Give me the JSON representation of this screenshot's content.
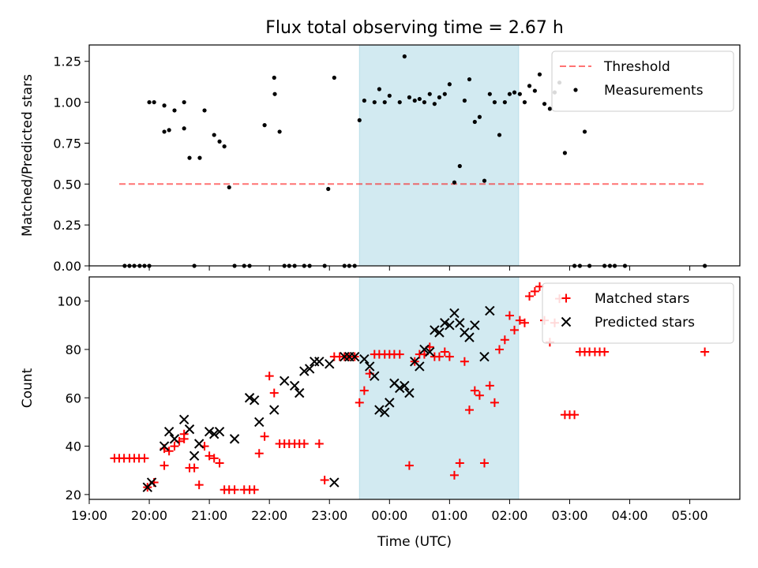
{
  "title": "Flux total observing time = 2.67 h",
  "chart_data": [
    {
      "type": "scatter",
      "panel": "top",
      "title": "Flux total observing time = 2.67 h",
      "xlabel": "",
      "ylabel": "Matched/Predicted stars",
      "x_unit": "hours since 19:00 UTC (tick labels show HH:MM)",
      "ylim": [
        0,
        1.35
      ],
      "yticks": [
        "0.00",
        "0.25",
        "0.50",
        "0.75",
        "1.00",
        "1.25"
      ],
      "grid": false,
      "legend_position": "top-right",
      "highlight_span": {
        "from": "23:30",
        "to": "02:09",
        "color": "#add8e6"
      },
      "threshold": {
        "name": "Threshold",
        "value": 0.5,
        "x_from": "19:30",
        "x_to": "05:15",
        "color": "#ff0000",
        "style": "dashed"
      },
      "series": [
        {
          "name": "Measurements",
          "color": "#000000",
          "marker": "dot",
          "points": [
            [
              0.59,
              0.0
            ],
            [
              0.67,
              0.0
            ],
            [
              0.75,
              0.0
            ],
            [
              0.84,
              0.0
            ],
            [
              0.92,
              0.0
            ],
            [
              1.0,
              0.0
            ],
            [
              1.0,
              1.0
            ],
            [
              1.08,
              1.0
            ],
            [
              1.25,
              0.82
            ],
            [
              1.25,
              0.98
            ],
            [
              1.33,
              0.83
            ],
            [
              1.42,
              0.95
            ],
            [
              1.58,
              1.0
            ],
            [
              1.58,
              0.84
            ],
            [
              1.67,
              0.66
            ],
            [
              1.75,
              0.0
            ],
            [
              1.84,
              0.66
            ],
            [
              1.92,
              0.95
            ],
            [
              2.08,
              0.8
            ],
            [
              2.17,
              0.76
            ],
            [
              2.25,
              0.73
            ],
            [
              2.33,
              0.48
            ],
            [
              2.42,
              0.0
            ],
            [
              2.58,
              0.0
            ],
            [
              2.67,
              0.0
            ],
            [
              2.92,
              0.86
            ],
            [
              3.08,
              1.15
            ],
            [
              3.09,
              1.05
            ],
            [
              3.17,
              0.82
            ],
            [
              3.25,
              0.0
            ],
            [
              3.33,
              0.0
            ],
            [
              3.42,
              0.0
            ],
            [
              3.58,
              0.0
            ],
            [
              3.67,
              0.0
            ],
            [
              3.92,
              0.0
            ],
            [
              3.98,
              0.47
            ],
            [
              4.08,
              1.15
            ],
            [
              4.25,
              0.0
            ],
            [
              4.33,
              0.0
            ],
            [
              4.42,
              0.0
            ],
            [
              4.5,
              0.89
            ],
            [
              4.58,
              1.01
            ],
            [
              4.75,
              1.0
            ],
            [
              4.83,
              1.08
            ],
            [
              4.92,
              1.0
            ],
            [
              5.0,
              1.04
            ],
            [
              5.17,
              1.0
            ],
            [
              5.25,
              1.28
            ],
            [
              5.33,
              1.03
            ],
            [
              5.42,
              1.01
            ],
            [
              5.5,
              1.02
            ],
            [
              5.58,
              1.0
            ],
            [
              5.67,
              1.05
            ],
            [
              5.75,
              0.99
            ],
            [
              5.83,
              1.03
            ],
            [
              5.92,
              1.05
            ],
            [
              6.0,
              1.11
            ],
            [
              6.08,
              0.51
            ],
            [
              6.17,
              0.61
            ],
            [
              6.25,
              1.01
            ],
            [
              6.33,
              1.14
            ],
            [
              6.42,
              0.88
            ],
            [
              6.5,
              0.91
            ],
            [
              6.58,
              0.52
            ],
            [
              6.67,
              1.05
            ],
            [
              6.75,
              1.0
            ],
            [
              6.83,
              0.8
            ],
            [
              6.92,
              1.0
            ],
            [
              7.0,
              1.05
            ],
            [
              7.08,
              1.06
            ],
            [
              7.17,
              1.05
            ],
            [
              7.25,
              1.0
            ],
            [
              7.33,
              1.1
            ],
            [
              7.42,
              1.07
            ],
            [
              7.5,
              1.17
            ],
            [
              7.58,
              0.99
            ],
            [
              7.67,
              0.96
            ],
            [
              7.75,
              1.06
            ],
            [
              7.83,
              1.12
            ],
            [
              7.92,
              0.69
            ],
            [
              8.08,
              0.0
            ],
            [
              8.17,
              0.0
            ],
            [
              8.25,
              0.82
            ],
            [
              8.33,
              0.0
            ],
            [
              8.58,
              0.0
            ],
            [
              8.67,
              0.0
            ],
            [
              8.75,
              0.0
            ],
            [
              8.92,
              0.0
            ],
            [
              10.25,
              0.0
            ]
          ]
        }
      ]
    },
    {
      "type": "scatter",
      "panel": "bottom",
      "xlabel": "Time (UTC)",
      "ylabel": "Count",
      "x_unit": "hours since 19:00 UTC (tick labels show HH:MM)",
      "xlim_label": [
        "19:00",
        "05:50"
      ],
      "xticks": [
        "19:00",
        "20:00",
        "21:00",
        "22:00",
        "23:00",
        "00:00",
        "01:00",
        "02:00",
        "03:00",
        "04:00",
        "05:00"
      ],
      "ylim": [
        18,
        110
      ],
      "yticks": [
        "20",
        "40",
        "60",
        "80",
        "100"
      ],
      "grid": false,
      "legend_position": "top-right",
      "highlight_span": {
        "from": "23:30",
        "to": "02:09",
        "color": "#add8e6"
      },
      "series": [
        {
          "name": "Matched stars",
          "color": "#ff0000",
          "marker": "plus",
          "points": [
            [
              0.42,
              35
            ],
            [
              0.5,
              35
            ],
            [
              0.58,
              35
            ],
            [
              0.67,
              35
            ],
            [
              0.75,
              35
            ],
            [
              0.83,
              35
            ],
            [
              0.92,
              35
            ],
            [
              0.97,
              23
            ],
            [
              1.08,
              25
            ],
            [
              1.25,
              32
            ],
            [
              1.25,
              39
            ],
            [
              1.33,
              38
            ],
            [
              1.42,
              40
            ],
            [
              1.5,
              42
            ],
            [
              1.58,
              43
            ],
            [
              1.58,
              45
            ],
            [
              1.67,
              31
            ],
            [
              1.75,
              31
            ],
            [
              1.83,
              24
            ],
            [
              1.92,
              40
            ],
            [
              2.0,
              36
            ],
            [
              2.08,
              35
            ],
            [
              2.17,
              33
            ],
            [
              2.25,
              22
            ],
            [
              2.33,
              22
            ],
            [
              2.42,
              22
            ],
            [
              2.58,
              22
            ],
            [
              2.67,
              22
            ],
            [
              2.75,
              22
            ],
            [
              2.83,
              37
            ],
            [
              2.92,
              44
            ],
            [
              3.0,
              69
            ],
            [
              3.08,
              62
            ],
            [
              3.17,
              41
            ],
            [
              3.25,
              41
            ],
            [
              3.33,
              41
            ],
            [
              3.42,
              41
            ],
            [
              3.5,
              41
            ],
            [
              3.58,
              41
            ],
            [
              3.83,
              41
            ],
            [
              3.92,
              26
            ],
            [
              4.08,
              77
            ],
            [
              4.17,
              77
            ],
            [
              4.25,
              77
            ],
            [
              4.33,
              77
            ],
            [
              4.42,
              77
            ],
            [
              4.5,
              58
            ],
            [
              4.58,
              63
            ],
            [
              4.67,
              70
            ],
            [
              4.75,
              78
            ],
            [
              4.83,
              78
            ],
            [
              4.92,
              78
            ],
            [
              5.0,
              78
            ],
            [
              5.08,
              78
            ],
            [
              5.17,
              78
            ],
            [
              5.33,
              32
            ],
            [
              5.42,
              75
            ],
            [
              5.5,
              78
            ],
            [
              5.58,
              78
            ],
            [
              5.67,
              81
            ],
            [
              5.75,
              77
            ],
            [
              5.83,
              77
            ],
            [
              5.92,
              79
            ],
            [
              6.0,
              77
            ],
            [
              6.08,
              28
            ],
            [
              6.17,
              33
            ],
            [
              6.25,
              75
            ],
            [
              6.33,
              55
            ],
            [
              6.42,
              63
            ],
            [
              6.5,
              61
            ],
            [
              6.58,
              33
            ],
            [
              6.67,
              65
            ],
            [
              6.75,
              58
            ],
            [
              6.83,
              80
            ],
            [
              6.92,
              84
            ],
            [
              7.0,
              94
            ],
            [
              7.08,
              88
            ],
            [
              7.17,
              92
            ],
            [
              7.25,
              91
            ],
            [
              7.33,
              102
            ],
            [
              7.42,
              104
            ],
            [
              7.5,
              106
            ],
            [
              7.58,
              92
            ],
            [
              7.67,
              83
            ],
            [
              7.75,
              91
            ],
            [
              7.83,
              101
            ],
            [
              7.92,
              53
            ],
            [
              8.0,
              53
            ],
            [
              8.08,
              53
            ],
            [
              8.17,
              79
            ],
            [
              8.25,
              79
            ],
            [
              8.33,
              79
            ],
            [
              8.42,
              79
            ],
            [
              8.5,
              79
            ],
            [
              8.58,
              79
            ],
            [
              10.25,
              79
            ]
          ]
        },
        {
          "name": "Predicted stars",
          "color": "#000000",
          "marker": "x",
          "points": [
            [
              0.97,
              23
            ],
            [
              1.04,
              25
            ],
            [
              1.25,
              40
            ],
            [
              1.33,
              46
            ],
            [
              1.42,
              43
            ],
            [
              1.58,
              51
            ],
            [
              1.67,
              47
            ],
            [
              1.75,
              36
            ],
            [
              1.83,
              41
            ],
            [
              2.0,
              46
            ],
            [
              2.08,
              45
            ],
            [
              2.17,
              46
            ],
            [
              2.42,
              43
            ],
            [
              2.67,
              60
            ],
            [
              2.75,
              59
            ],
            [
              2.83,
              50
            ],
            [
              3.08,
              55
            ],
            [
              3.25,
              67
            ],
            [
              3.42,
              65
            ],
            [
              3.5,
              62
            ],
            [
              3.58,
              71
            ],
            [
              3.67,
              72
            ],
            [
              3.75,
              75
            ],
            [
              3.83,
              75
            ],
            [
              4.0,
              74
            ],
            [
              4.08,
              25
            ],
            [
              4.25,
              77
            ],
            [
              4.33,
              77
            ],
            [
              4.42,
              77
            ],
            [
              4.58,
              76
            ],
            [
              4.67,
              73
            ],
            [
              4.75,
              69
            ],
            [
              4.83,
              55
            ],
            [
              4.92,
              54
            ],
            [
              5.0,
              58
            ],
            [
              5.08,
              66
            ],
            [
              5.17,
              64
            ],
            [
              5.25,
              65
            ],
            [
              5.33,
              62
            ],
            [
              5.42,
              75
            ],
            [
              5.5,
              73
            ],
            [
              5.58,
              80
            ],
            [
              5.67,
              79
            ],
            [
              5.75,
              88
            ],
            [
              5.83,
              87
            ],
            [
              5.92,
              91
            ],
            [
              6.0,
              90
            ],
            [
              6.08,
              95
            ],
            [
              6.17,
              91
            ],
            [
              6.25,
              87
            ],
            [
              6.33,
              85
            ],
            [
              6.42,
              90
            ],
            [
              6.58,
              77
            ],
            [
              6.67,
              96
            ]
          ]
        }
      ]
    }
  ]
}
